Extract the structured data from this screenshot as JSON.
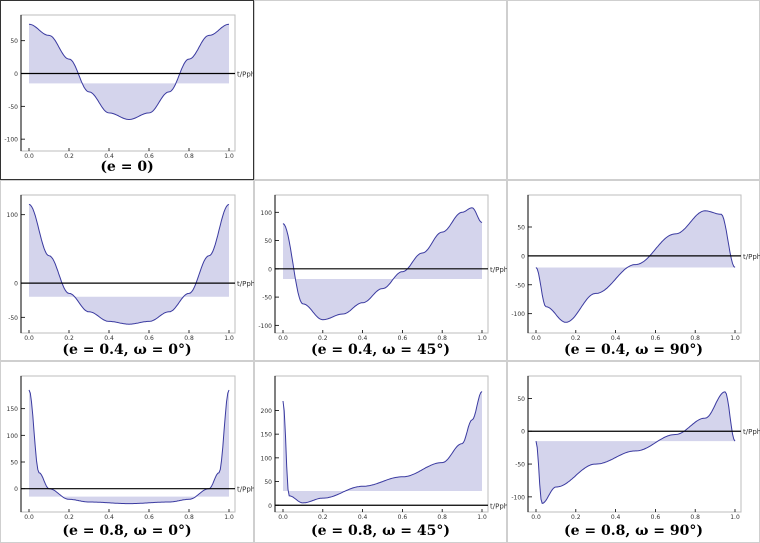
{
  "panels": [
    {
      "id": "e0",
      "caption": "(e = 0)",
      "axis_label": "t/Pphase",
      "e": 0,
      "omega": null,
      "x_ticks": [
        "0.0",
        "0.2",
        "0.4",
        "0.6",
        "0.8",
        "1.0"
      ],
      "y_ticks": [
        {
          "label": "50",
          "v": 50
        },
        {
          "label": "0",
          "v": 0
        },
        {
          "label": "-50",
          "v": -50
        },
        {
          "label": "-100",
          "v": -100
        }
      ],
      "ylim": [
        -115,
        80
      ],
      "offset": -15
    },
    {
      "id": "e04w0",
      "caption": "(e = 0.4, ω = 0°)",
      "axis_label": "t/Pphase",
      "e": 0.4,
      "omega": 0,
      "x_ticks": [
        "0.0",
        "0.2",
        "0.4",
        "0.6",
        "0.8",
        "1.0"
      ],
      "y_ticks": [
        {
          "label": "100",
          "v": 100
        },
        {
          "label": "0",
          "v": 0
        },
        {
          "label": "-50",
          "v": -50
        }
      ],
      "ylim": [
        -70,
        120
      ],
      "offset": -20
    },
    {
      "id": "e04w45",
      "caption": "(e = 0.4, ω = 45°)",
      "axis_label": "t/Pphase",
      "e": 0.4,
      "omega": 45,
      "x_ticks": [
        "0.0",
        "0.2",
        "0.4",
        "0.6",
        "0.8",
        "1.0"
      ],
      "y_ticks": [
        {
          "label": "100",
          "v": 100
        },
        {
          "label": "50",
          "v": 50
        },
        {
          "label": "0",
          "v": 0
        },
        {
          "label": "-50",
          "v": -50
        },
        {
          "label": "-100",
          "v": -100
        }
      ],
      "ylim": [
        -110,
        120
      ],
      "offset": -18
    },
    {
      "id": "e04w90",
      "caption": "(e = 0.4, ω = 90°)",
      "axis_label": "t/Pphase",
      "e": 0.4,
      "omega": 90,
      "x_ticks": [
        "0.0",
        "0.2",
        "0.4",
        "0.6",
        "0.8",
        "1.0"
      ],
      "y_ticks": [
        {
          "label": "50",
          "v": 50
        },
        {
          "label": "0",
          "v": 0
        },
        {
          "label": "-50",
          "v": -50
        },
        {
          "label": "-100",
          "v": -100
        }
      ],
      "ylim": [
        -130,
        95
      ],
      "offset": -20
    },
    {
      "id": "e08w0",
      "caption": "(e = 0.8, ω = 0°)",
      "axis_label": "t/Pphase",
      "e": 0.8,
      "omega": 0,
      "x_ticks": [
        "0.0",
        "0.2",
        "0.4",
        "0.6",
        "0.8",
        "1.0"
      ],
      "y_ticks": [
        {
          "label": "150",
          "v": 150
        },
        {
          "label": "100",
          "v": 100
        },
        {
          "label": "50",
          "v": 50
        },
        {
          "label": "0",
          "v": 0
        }
      ],
      "ylim": [
        -40,
        200
      ],
      "offset": -15
    },
    {
      "id": "e08w45",
      "caption": "(e = 0.8, ω = 45°)",
      "axis_label": "t/Pphase",
      "e": 0.8,
      "omega": 45,
      "x_ticks": [
        "0.0",
        "0.2",
        "0.4",
        "0.6",
        "0.8",
        "1.0"
      ],
      "y_ticks": [
        {
          "label": "200",
          "v": 200
        },
        {
          "label": "150",
          "v": 150
        },
        {
          "label": "100",
          "v": 100
        },
        {
          "label": "50",
          "v": 50
        },
        {
          "label": "0",
          "v": 0
        }
      ],
      "ylim": [
        -10,
        260
      ],
      "offset": 30
    },
    {
      "id": "e08w90",
      "caption": "(e = 0.8, ω = 90°)",
      "axis_label": "t/Pphase",
      "e": 0.8,
      "omega": 90,
      "x_ticks": [
        "0.0",
        "0.2",
        "0.4",
        "0.6",
        "0.8",
        "1.0"
      ],
      "y_ticks": [
        {
          "label": "50",
          "v": 50
        },
        {
          "label": "0",
          "v": 0
        },
        {
          "label": "-50",
          "v": -50
        },
        {
          "label": "-100",
          "v": -100
        }
      ],
      "ylim": [
        -120,
        75
      ],
      "offset": -15
    }
  ],
  "chart_data": [
    {
      "type": "area",
      "title": "(e = 0)",
      "xlabel": "t/Pphase",
      "xlim": [
        0,
        1
      ],
      "ylim": [
        -115,
        80
      ],
      "baseline": -15,
      "x": [
        0,
        0.1,
        0.2,
        0.3,
        0.4,
        0.5,
        0.6,
        0.7,
        0.8,
        0.9,
        1
      ],
      "y": [
        75,
        58,
        22,
        -28,
        -60,
        -70,
        -60,
        -28,
        22,
        58,
        75
      ]
    },
    {
      "type": "area",
      "title": "(e = 0.4, ω = 0°)",
      "xlabel": "t/Pphase",
      "xlim": [
        0,
        1
      ],
      "ylim": [
        -70,
        120
      ],
      "baseline": -20,
      "x": [
        0,
        0.1,
        0.2,
        0.3,
        0.4,
        0.5,
        0.6,
        0.7,
        0.8,
        0.9,
        1
      ],
      "y": [
        115,
        40,
        -15,
        -42,
        -56,
        -60,
        -56,
        -42,
        -15,
        40,
        115
      ]
    },
    {
      "type": "area",
      "title": "(e = 0.4, ω = 45°)",
      "xlabel": "t/Pphase",
      "xlim": [
        0,
        1
      ],
      "ylim": [
        -110,
        120
      ],
      "baseline": -18,
      "x": [
        0,
        0.1,
        0.2,
        0.3,
        0.4,
        0.5,
        0.6,
        0.7,
        0.8,
        0.9,
        0.95,
        1
      ],
      "y": [
        80,
        -62,
        -90,
        -80,
        -60,
        -35,
        -5,
        28,
        65,
        100,
        108,
        82
      ]
    },
    {
      "type": "area",
      "title": "(e = 0.4, ω = 90°)",
      "xlabel": "t/Pphase",
      "xlim": [
        0,
        1
      ],
      "ylim": [
        -130,
        95
      ],
      "baseline": -20,
      "x": [
        0,
        0.05,
        0.15,
        0.3,
        0.5,
        0.7,
        0.85,
        0.93,
        1
      ],
      "y": [
        -20,
        -88,
        -115,
        -65,
        -15,
        38,
        78,
        72,
        -20
      ]
    },
    {
      "type": "area",
      "title": "(e = 0.8, ω = 0°)",
      "xlabel": "t/Pphase",
      "xlim": [
        0,
        1
      ],
      "ylim": [
        -40,
        200
      ],
      "baseline": -15,
      "x": [
        0,
        0.05,
        0.1,
        0.2,
        0.3,
        0.5,
        0.7,
        0.8,
        0.9,
        0.95,
        1
      ],
      "y": [
        185,
        30,
        0,
        -20,
        -25,
        -28,
        -25,
        -20,
        0,
        30,
        185
      ]
    },
    {
      "type": "area",
      "title": "(e = 0.8, ω = 45°)",
      "xlabel": "t/Pphase",
      "xlim": [
        0,
        1
      ],
      "ylim": [
        -10,
        260
      ],
      "baseline": 30,
      "x": [
        0,
        0.03,
        0.1,
        0.2,
        0.4,
        0.6,
        0.8,
        0.9,
        0.95,
        1
      ],
      "y": [
        220,
        20,
        5,
        15,
        40,
        60,
        90,
        130,
        180,
        240
      ]
    },
    {
      "type": "area",
      "title": "(e = 0.8, ω = 90°)",
      "xlabel": "t/Pphase",
      "xlim": [
        0,
        1
      ],
      "ylim": [
        -120,
        75
      ],
      "baseline": -15,
      "x": [
        0,
        0.03,
        0.1,
        0.3,
        0.5,
        0.7,
        0.85,
        0.95,
        1
      ],
      "y": [
        -15,
        -110,
        -85,
        -50,
        -30,
        -5,
        20,
        60,
        -15
      ]
    }
  ]
}
